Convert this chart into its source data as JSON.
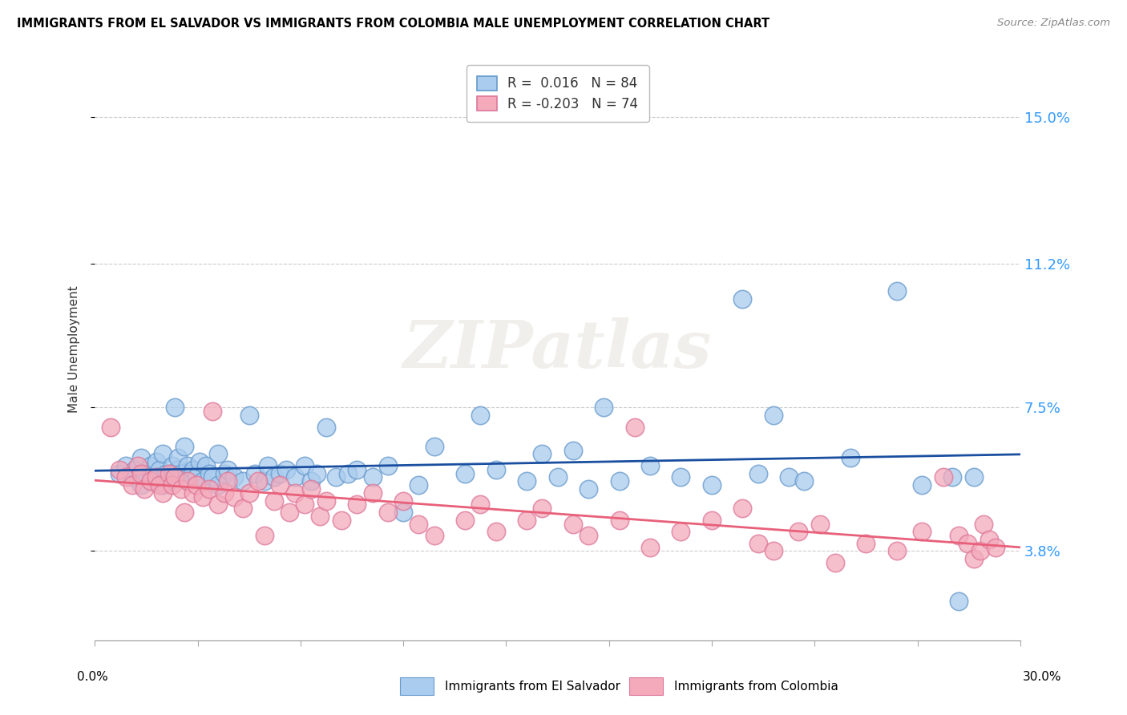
{
  "title": "IMMIGRANTS FROM EL SALVADOR VS IMMIGRANTS FROM COLOMBIA MALE UNEMPLOYMENT CORRELATION CHART",
  "source": "Source: ZipAtlas.com",
  "ylabel": "Male Unemployment",
  "yticks": [
    3.8,
    7.5,
    11.2,
    15.0
  ],
  "ytick_labels": [
    "3.8%",
    "7.5%",
    "11.2%",
    "15.0%"
  ],
  "xmin": 0.0,
  "xmax": 0.3,
  "ymin": 1.5,
  "ymax": 16.5,
  "legend1_r": "0.016",
  "legend1_n": "84",
  "legend2_r": "-0.203",
  "legend2_n": "74",
  "color_es_face": "#aaccee",
  "color_es_edge": "#6699cc",
  "color_co_face": "#f4aabb",
  "color_co_edge": "#dd7799",
  "line_es": "#1a4fa0",
  "line_co": "#e8607a",
  "watermark": "ZIPatlas",
  "el_salvador_x": [
    0.008,
    0.01,
    0.012,
    0.013,
    0.015,
    0.015,
    0.016,
    0.018,
    0.018,
    0.02,
    0.02,
    0.021,
    0.022,
    0.022,
    0.023,
    0.024,
    0.025,
    0.025,
    0.026,
    0.026,
    0.027,
    0.027,
    0.028,
    0.029,
    0.03,
    0.03,
    0.031,
    0.032,
    0.033,
    0.034,
    0.035,
    0.036,
    0.037,
    0.038,
    0.04,
    0.04,
    0.042,
    0.043,
    0.045,
    0.048,
    0.05,
    0.052,
    0.055,
    0.056,
    0.058,
    0.06,
    0.062,
    0.065,
    0.068,
    0.07,
    0.072,
    0.075,
    0.078,
    0.082,
    0.085,
    0.09,
    0.095,
    0.1,
    0.105,
    0.11,
    0.12,
    0.125,
    0.13,
    0.14,
    0.145,
    0.15,
    0.155,
    0.16,
    0.165,
    0.17,
    0.18,
    0.19,
    0.2,
    0.21,
    0.215,
    0.22,
    0.225,
    0.23,
    0.245,
    0.26,
    0.268,
    0.278,
    0.28,
    0.285
  ],
  "el_salvador_y": [
    5.8,
    6.0,
    5.7,
    5.9,
    5.5,
    6.2,
    5.8,
    6.0,
    5.6,
    5.7,
    6.1,
    5.9,
    5.5,
    6.3,
    5.8,
    5.6,
    6.0,
    5.8,
    7.5,
    5.7,
    5.9,
    6.2,
    5.8,
    6.5,
    5.6,
    6.0,
    5.8,
    5.9,
    5.7,
    6.1,
    5.6,
    6.0,
    5.8,
    5.7,
    5.5,
    6.3,
    5.8,
    5.9,
    5.7,
    5.6,
    7.3,
    5.8,
    5.6,
    6.0,
    5.7,
    5.8,
    5.9,
    5.7,
    6.0,
    5.6,
    5.8,
    7.0,
    5.7,
    5.8,
    5.9,
    5.7,
    6.0,
    4.8,
    5.5,
    6.5,
    5.8,
    7.3,
    5.9,
    5.6,
    6.3,
    5.7,
    6.4,
    5.4,
    7.5,
    5.6,
    6.0,
    5.7,
    5.5,
    10.3,
    5.8,
    7.3,
    5.7,
    5.6,
    6.2,
    10.5,
    5.5,
    5.7,
    2.5,
    5.7
  ],
  "colombia_x": [
    0.005,
    0.008,
    0.01,
    0.012,
    0.014,
    0.015,
    0.016,
    0.018,
    0.02,
    0.021,
    0.022,
    0.024,
    0.025,
    0.026,
    0.028,
    0.029,
    0.03,
    0.032,
    0.033,
    0.035,
    0.037,
    0.038,
    0.04,
    0.042,
    0.043,
    0.045,
    0.048,
    0.05,
    0.053,
    0.055,
    0.058,
    0.06,
    0.063,
    0.065,
    0.068,
    0.07,
    0.073,
    0.075,
    0.08,
    0.085,
    0.09,
    0.095,
    0.1,
    0.105,
    0.11,
    0.12,
    0.125,
    0.13,
    0.14,
    0.145,
    0.155,
    0.16,
    0.17,
    0.175,
    0.18,
    0.19,
    0.2,
    0.21,
    0.215,
    0.22,
    0.228,
    0.235,
    0.24,
    0.25,
    0.26,
    0.268,
    0.275,
    0.28,
    0.283,
    0.285,
    0.287,
    0.288,
    0.29,
    0.292
  ],
  "colombia_y": [
    7.0,
    5.9,
    5.7,
    5.5,
    6.0,
    5.8,
    5.4,
    5.6,
    5.7,
    5.5,
    5.3,
    5.8,
    5.5,
    5.7,
    5.4,
    4.8,
    5.6,
    5.3,
    5.5,
    5.2,
    5.4,
    7.4,
    5.0,
    5.3,
    5.6,
    5.2,
    4.9,
    5.3,
    5.6,
    4.2,
    5.1,
    5.5,
    4.8,
    5.3,
    5.0,
    5.4,
    4.7,
    5.1,
    4.6,
    5.0,
    5.3,
    4.8,
    5.1,
    4.5,
    4.2,
    4.6,
    5.0,
    4.3,
    4.6,
    4.9,
    4.5,
    4.2,
    4.6,
    7.0,
    3.9,
    4.3,
    4.6,
    4.9,
    4.0,
    3.8,
    4.3,
    4.5,
    3.5,
    4.0,
    3.8,
    4.3,
    5.7,
    4.2,
    4.0,
    3.6,
    3.8,
    4.5,
    4.1,
    3.9
  ]
}
